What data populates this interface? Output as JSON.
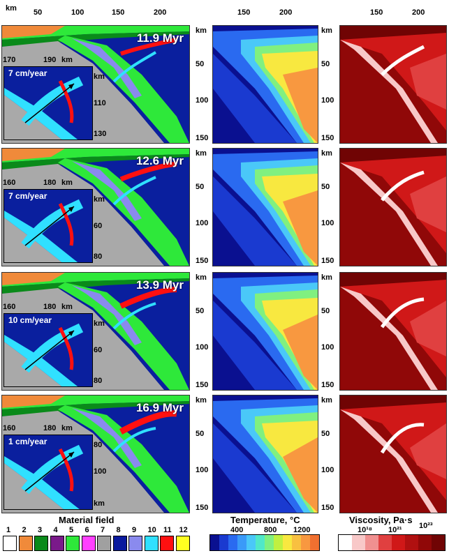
{
  "top_axis": {
    "left_unit": "km",
    "left_ticks": [
      "50",
      "100",
      "150",
      "200"
    ],
    "mid_ticks": [
      "150",
      "200"
    ],
    "right_ticks": [
      "150",
      "200"
    ]
  },
  "depth_axis": {
    "unit": "km",
    "ticks": [
      "50",
      "100",
      "150"
    ]
  },
  "rows": [
    {
      "age": "11.9 Myr",
      "speed": "7 cm/year",
      "inset_x": [
        "170",
        "190",
        "km"
      ],
      "inset_y": [
        "km",
        "110",
        "130"
      ]
    },
    {
      "age": "12.6 Myr",
      "speed": "7 cm/year",
      "inset_x": [
        "160",
        "180",
        "km"
      ],
      "inset_y": [
        "km",
        "60",
        "80"
      ]
    },
    {
      "age": "13.9 Myr",
      "speed": "10 cm/year",
      "inset_x": [
        "160",
        "180",
        "km"
      ],
      "inset_y": [
        "km",
        "60",
        "80"
      ]
    },
    {
      "age": "16.9 Myr",
      "speed": "1 cm/year",
      "inset_x": [
        "160",
        "180",
        "km"
      ],
      "inset_y": [
        "80",
        "100",
        "km"
      ]
    }
  ],
  "legend": {
    "material_title": "Material field",
    "material_numbers": [
      "1",
      "2",
      "3",
      "4",
      "5",
      "6",
      "7",
      "8",
      "9",
      "10",
      "11",
      "12"
    ],
    "material_colors": [
      "#ffffff",
      "#f08a3a",
      "#0a8a1a",
      "#7a1a8a",
      "#2ee83a",
      "#ff40ff",
      "#a0a0a0",
      "#0a1a9e",
      "#8a8aee",
      "#30e0ff",
      "#ff1010",
      "#ffff20"
    ],
    "temperature_title": "Temperature, °C",
    "temperature_ticks": [
      "400",
      "800",
      "1200"
    ],
    "viscosity_title": "Viscosity, Pa·s",
    "viscosity_ticks": [
      "10¹⁸",
      "10²¹",
      "10²³"
    ]
  },
  "colors": {
    "mantle": "#0a1f9e",
    "slab_gray": "#a9a9a9",
    "crust_green": "#2ee83a",
    "plume_cyan": "#30e0ff",
    "melt_red": "#ff1010"
  }
}
